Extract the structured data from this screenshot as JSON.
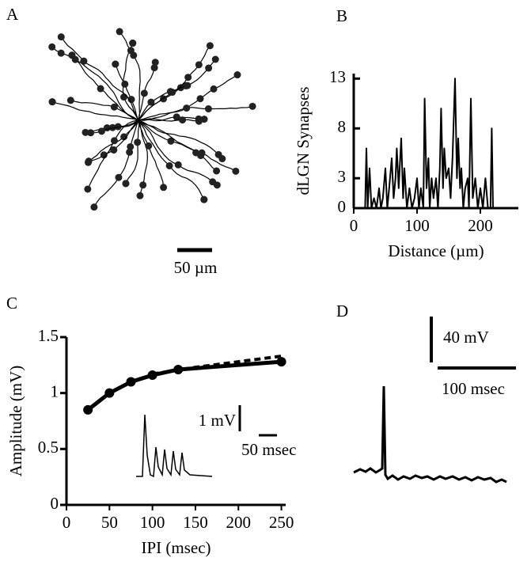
{
  "chart_data": [
    {
      "type": "morphology",
      "panel": "A",
      "scale_bar_label": "50 µm"
    },
    {
      "type": "line",
      "panel": "B",
      "xlabel": "Distance (µm)",
      "ylabel": "dLGN Synapses",
      "xlim": [
        0,
        260
      ],
      "ylim": [
        0,
        13.5
      ],
      "xticks": [
        0,
        100,
        200
      ],
      "yticks": [
        0,
        3,
        8,
        13
      ],
      "x": [
        15,
        18,
        20,
        22,
        25,
        28,
        32,
        36,
        40,
        43,
        46,
        50,
        53,
        56,
        60,
        63,
        66,
        68,
        71,
        75,
        78,
        80,
        84,
        88,
        92,
        96,
        100,
        103,
        106,
        110,
        112,
        115,
        118,
        120,
        123,
        126,
        130,
        133,
        136,
        138,
        141,
        143,
        146,
        150,
        153,
        156,
        158,
        160,
        163,
        165,
        168,
        170,
        173,
        176,
        180,
        182,
        185,
        188,
        192,
        196,
        200,
        204,
        208,
        212,
        216,
        218,
        220,
        225
      ],
      "series": [
        {
          "color": "#000000",
          "values": [
            0,
            0,
            6,
            0,
            4,
            0,
            1,
            0,
            2,
            0,
            1,
            4,
            0,
            2,
            5,
            1,
            3,
            6,
            2,
            7,
            1,
            4,
            0,
            2,
            0,
            1,
            3,
            0,
            2,
            0,
            11,
            2,
            5,
            0,
            3,
            1,
            3,
            0,
            4,
            10,
            2,
            6,
            3,
            4,
            1,
            5,
            9,
            13,
            3,
            7,
            2,
            4,
            0,
            2,
            3,
            0,
            11,
            1,
            3,
            0,
            2,
            0,
            3,
            0,
            0,
            8,
            0,
            0
          ]
        }
      ]
    },
    {
      "type": "line",
      "panel": "C",
      "xlabel": "IPI (msec)",
      "ylabel": "Amplitude (mV)",
      "xlim": [
        0,
        255
      ],
      "ylim": [
        0,
        1.5
      ],
      "xticks": [
        0,
        50,
        100,
        150,
        200,
        250
      ],
      "yticks": [
        0,
        0.5,
        1,
        1.5
      ],
      "series": [
        {
          "color": "#000000",
          "x": [
            25,
            50,
            75,
            100,
            130,
            250
          ],
          "values": [
            0.85,
            1.0,
            1.1,
            1.16,
            1.21,
            1.28
          ],
          "markers": true
        },
        {
          "color": "#000000",
          "x": [
            100,
            150,
            200,
            250
          ],
          "values": [
            1.17,
            1.23,
            1.28,
            1.33
          ],
          "dash": true
        }
      ],
      "scale_labels": [
        "1 mV",
        "50 msec"
      ]
    },
    {
      "type": "trace",
      "panel": "D",
      "scale_labels": [
        "40 mV",
        "100 msec"
      ]
    }
  ]
}
